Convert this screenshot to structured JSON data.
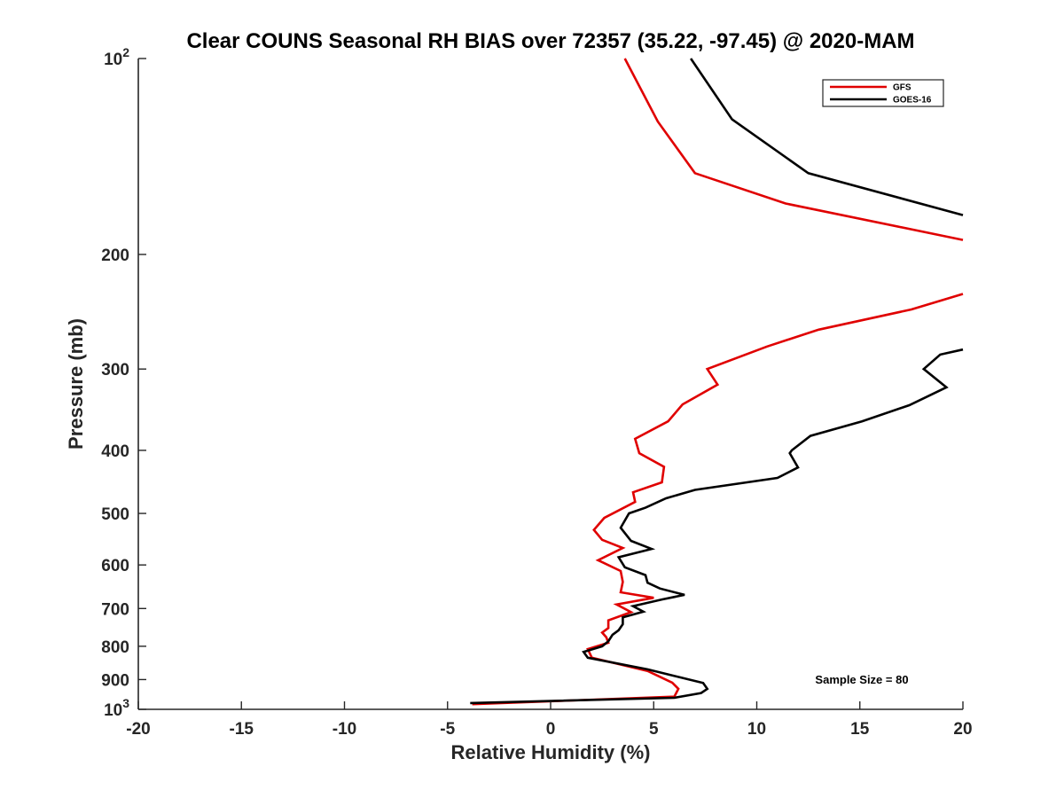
{
  "chart_data": {
    "type": "line",
    "title": "Clear COUNS Seasonal RH BIAS over 72357 (35.22, -97.45) @ 2020-MAM",
    "xlabel": "Relative Humidity (%)",
    "ylabel": "Pressure (mb)",
    "xlim": [
      -20,
      20
    ],
    "ylim": [
      100,
      1000
    ],
    "yscale": "log",
    "ydirection": "reverse",
    "x_ticks": [
      "-20",
      "-15",
      "-10",
      "-5",
      "0",
      "5",
      "10",
      "15",
      "20"
    ],
    "y_ticks": [
      {
        "base": "10",
        "exp": "2",
        "value": 100
      },
      {
        "base": "200",
        "exp": "",
        "value": 200
      },
      {
        "base": "300",
        "exp": "",
        "value": 300
      },
      {
        "base": "400",
        "exp": "",
        "value": 400
      },
      {
        "base": "500",
        "exp": "",
        "value": 500
      },
      {
        "base": "600",
        "exp": "",
        "value": 600
      },
      {
        "base": "700",
        "exp": "",
        "value": 700
      },
      {
        "base": "800",
        "exp": "",
        "value": 800
      },
      {
        "base": "900",
        "exp": "",
        "value": 900
      },
      {
        "base": "10",
        "exp": "3",
        "value": 1000
      }
    ],
    "legend_position": "top-right",
    "annotation": "Sample Size = 80",
    "series": [
      {
        "name": "GFS",
        "color": "#e00000",
        "points": [
          [
            3.6,
            100
          ],
          [
            5.2,
            125
          ],
          [
            7.0,
            150
          ],
          [
            11.4,
            167
          ],
          [
            20,
            190
          ],
          [
            null,
            null
          ],
          [
            20,
            230
          ],
          [
            17.5,
            243
          ],
          [
            13.0,
            261
          ],
          [
            10.5,
            277
          ],
          [
            7.6,
            300
          ],
          [
            8.1,
            317
          ],
          [
            6.4,
            340
          ],
          [
            5.7,
            361
          ],
          [
            4.1,
            384
          ],
          [
            4.3,
            404
          ],
          [
            5.5,
            424
          ],
          [
            5.4,
            448
          ],
          [
            4.0,
            464
          ],
          [
            4.1,
            480
          ],
          [
            2.6,
            508
          ],
          [
            2.1,
            530
          ],
          [
            2.5,
            549
          ],
          [
            3.5,
            565
          ],
          [
            2.3,
            590
          ],
          [
            3.4,
            613
          ],
          [
            3.5,
            637
          ],
          [
            3.4,
            661
          ],
          [
            5.0,
            674
          ],
          [
            3.2,
            690
          ],
          [
            3.9,
            709
          ],
          [
            2.8,
            730
          ],
          [
            2.8,
            750
          ],
          [
            2.5,
            762
          ],
          [
            2.7,
            775
          ],
          [
            2.8,
            790
          ],
          [
            1.8,
            808
          ],
          [
            2.0,
            833
          ],
          [
            4.7,
            873
          ],
          [
            5.9,
            910
          ],
          [
            6.2,
            930
          ],
          [
            6.0,
            956
          ],
          [
            -3.8,
            982
          ]
        ]
      },
      {
        "name": "GOES-16",
        "color": "#000000",
        "points": [
          [
            6.8,
            100
          ],
          [
            8.8,
            124
          ],
          [
            12.5,
            150
          ],
          [
            20,
            174
          ],
          [
            null,
            null
          ],
          [
            20,
            280
          ],
          [
            18.9,
            285
          ],
          [
            18.1,
            300
          ],
          [
            19.2,
            320
          ],
          [
            17.4,
            341
          ],
          [
            15.1,
            361
          ],
          [
            12.6,
            380
          ],
          [
            11.7,
            400
          ],
          [
            11.6,
            404
          ],
          [
            12.0,
            425
          ],
          [
            11.0,
            441
          ],
          [
            7.0,
            460
          ],
          [
            5.6,
            474
          ],
          [
            4.6,
            490
          ],
          [
            3.8,
            500
          ],
          [
            3.4,
            526
          ],
          [
            3.9,
            551
          ],
          [
            4.9,
            567
          ],
          [
            3.3,
            584
          ],
          [
            3.6,
            605
          ],
          [
            4.6,
            622
          ],
          [
            4.7,
            639
          ],
          [
            5.3,
            652
          ],
          [
            6.5,
            667
          ],
          [
            5.4,
            678
          ],
          [
            4.0,
            694
          ],
          [
            4.5,
            708
          ],
          [
            3.5,
            722
          ],
          [
            3.5,
            740
          ],
          [
            3.3,
            756
          ],
          [
            3.0,
            768
          ],
          [
            2.8,
            786
          ],
          [
            2.5,
            800
          ],
          [
            1.6,
            816
          ],
          [
            1.8,
            833
          ],
          [
            4.7,
            868
          ],
          [
            7.4,
            911
          ],
          [
            7.6,
            930
          ],
          [
            7.3,
            944
          ],
          [
            6.0,
            960
          ],
          [
            -3.9,
            978
          ]
        ]
      }
    ]
  }
}
